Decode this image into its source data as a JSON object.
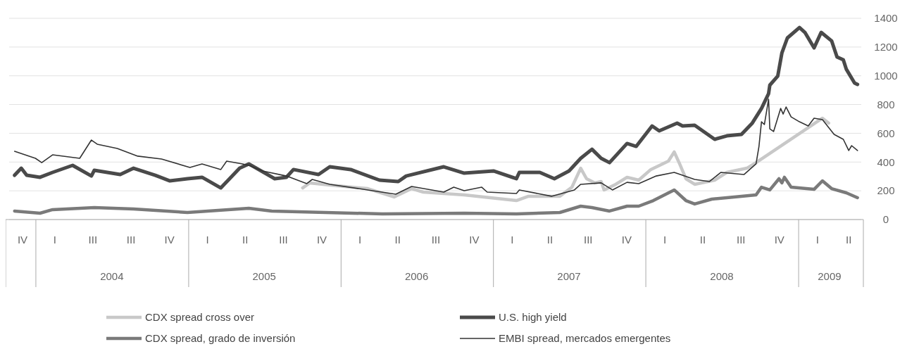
{
  "chart_data": {
    "type": "line",
    "xlim": [
      "2003-10-29",
      "2009-05-31"
    ],
    "ylim": [
      0,
      1400
    ],
    "yticks": [
      0,
      200,
      400,
      600,
      800,
      1000,
      1200,
      1400
    ],
    "xticks": [
      {
        "value": "2004-07-01",
        "label": "2004"
      },
      {
        "value": "2005-07-01",
        "label": "2005"
      },
      {
        "value": "2006-07-01",
        "label": "2006"
      },
      {
        "value": "2007-07-01",
        "label": "2007"
      },
      {
        "value": "2008-07-01",
        "label": "2008"
      },
      {
        "value": "2009-03-16",
        "label": "2009"
      }
    ],
    "annotations": [
      "IV",
      "I",
      "III",
      "III",
      "IV",
      "I",
      "II",
      "III",
      "IV",
      "I",
      "II",
      "III",
      "IV",
      "I",
      "II",
      "III",
      "IV",
      "I",
      "II",
      "III",
      "IV",
      "I",
      "II"
    ],
    "grid": "y",
    "legend": "bottom",
    "series": [
      {
        "name": "CDX spread cross over",
        "color": "#c8c8c8",
        "x": [
          "2005-10-01",
          "2005-10-18",
          "2005-12-05",
          "2006-03-06",
          "2006-05-08",
          "2006-06-19",
          "2006-07-17",
          "2006-10-23",
          "2007-02-25",
          "2007-03-26",
          "2007-06-09",
          "2007-07-08",
          "2007-07-29",
          "2007-08-12",
          "2007-09-01",
          "2007-09-16",
          "2007-09-23",
          "2007-10-21",
          "2007-11-17",
          "2007-12-15",
          "2008-01-13",
          "2008-02-24",
          "2008-03-09",
          "2008-03-22",
          "2008-04-06",
          "2008-04-27",
          "2008-06-14",
          "2008-07-13",
          "2008-08-30",
          "2008-09-21",
          "2009-02-27",
          "2009-03-14"
        ],
        "values": [
          220,
          255,
          240,
          215,
          157,
          215,
          191,
          171,
          132,
          162,
          162,
          225,
          357,
          284,
          255,
          264,
          206,
          245,
          294,
          274,
          348,
          406,
          470,
          387,
          284,
          245,
          274,
          328,
          357,
          396,
          705,
          671
        ]
      },
      {
        "name": "CDX spread, grado de inversión",
        "color": "#7a7a7a",
        "x": [
          "2003-11-11",
          "2004-01-11",
          "2004-02-10",
          "2004-05-20",
          "2004-08-22",
          "2004-12-29",
          "2005-05-25",
          "2005-07-19",
          "2006-04-10",
          "2006-10-23",
          "2007-02-25",
          "2007-06-09",
          "2007-07-29",
          "2007-08-25",
          "2007-10-06",
          "2007-11-17",
          "2007-12-15",
          "2008-01-19",
          "2008-03-09",
          "2008-04-06",
          "2008-04-27",
          "2008-06-07",
          "2008-07-13",
          "2008-09-21",
          "2008-10-04",
          "2008-10-24",
          "2008-11-15",
          "2008-11-22",
          "2008-11-28",
          "2008-12-14",
          "2009-02-07",
          "2009-02-27",
          "2009-03-21",
          "2009-04-25",
          "2009-05-22"
        ],
        "values": [
          59,
          44,
          69,
          83,
          73,
          49,
          78,
          59,
          39,
          44,
          39,
          49,
          93,
          83,
          59,
          93,
          93,
          132,
          206,
          132,
          108,
          142,
          152,
          171,
          225,
          206,
          284,
          255,
          294,
          225,
          210,
          269,
          215,
          186,
          152
        ]
      },
      {
        "name": "U.S. high yield",
        "color": "#4a4a4a",
        "x": [
          "2003-11-11",
          "2003-11-27",
          "2003-12-10",
          "2004-01-11",
          "2004-02-10",
          "2004-03-29",
          "2004-05-13",
          "2004-05-20",
          "2004-07-21",
          "2004-08-22",
          "2004-10-13",
          "2004-11-17",
          "2004-12-29",
          "2005-02-02",
          "2005-03-19",
          "2005-05-03",
          "2005-05-25",
          "2005-07-26",
          "2005-08-23",
          "2005-09-09",
          "2005-11-08",
          "2005-12-05",
          "2006-01-24",
          "2006-04-03",
          "2006-05-18",
          "2006-06-06",
          "2006-09-04",
          "2006-10-23",
          "2007-01-01",
          "2007-02-25",
          "2007-03-04",
          "2007-04-22",
          "2007-05-27",
          "2007-07-01",
          "2007-07-29",
          "2007-08-25",
          "2007-09-16",
          "2007-10-06",
          "2007-11-17",
          "2007-12-09",
          "2008-01-16",
          "2008-02-02",
          "2008-03-16",
          "2008-03-29",
          "2008-04-27",
          "2008-06-14",
          "2008-07-13",
          "2008-08-17",
          "2008-09-12",
          "2008-10-04",
          "2008-10-21",
          "2008-10-24",
          "2008-11-12",
          "2008-11-22",
          "2008-12-05",
          "2009-01-03",
          "2009-01-16",
          "2009-02-07",
          "2009-02-24",
          "2009-03-21",
          "2009-04-03",
          "2009-04-18",
          "2009-04-25",
          "2009-05-15",
          "2009-05-22"
        ],
        "values": [
          308,
          357,
          308,
          294,
          328,
          377,
          303,
          343,
          313,
          357,
          308,
          269,
          284,
          294,
          220,
          357,
          387,
          284,
          294,
          348,
          313,
          367,
          348,
          274,
          264,
          303,
          367,
          323,
          338,
          284,
          328,
          328,
          284,
          338,
          426,
          489,
          426,
          396,
          529,
          509,
          651,
          617,
          671,
          651,
          656,
          558,
          582,
          592,
          671,
          773,
          876,
          935,
          998,
          1160,
          1263,
          1336,
          1302,
          1194,
          1302,
          1243,
          1131,
          1111,
          1047,
          950,
          940
        ]
      },
      {
        "name": "EMBI spread, mercados emergentes",
        "color": "#333333",
        "x": [
          "2003-11-11",
          "2003-12-31",
          "2004-01-15",
          "2004-02-10",
          "2004-04-15",
          "2004-05-13",
          "2004-05-27",
          "2004-07-14",
          "2004-09-01",
          "2004-10-28",
          "2005-01-04",
          "2005-02-02",
          "2005-03-19",
          "2005-04-02",
          "2005-05-10",
          "2005-05-25",
          "2005-06-27",
          "2005-08-23",
          "2005-10-11",
          "2005-10-24",
          "2005-12-05",
          "2006-03-06",
          "2006-05-12",
          "2006-06-19",
          "2006-09-04",
          "2006-09-28",
          "2006-10-23",
          "2006-12-04",
          "2006-12-17",
          "2007-02-25",
          "2007-03-04",
          "2007-05-20",
          "2007-07-14",
          "2007-07-29",
          "2007-09-16",
          "2007-10-13",
          "2007-11-17",
          "2007-12-15",
          "2008-01-26",
          "2008-03-09",
          "2008-04-27",
          "2008-06-01",
          "2008-06-29",
          "2008-08-23",
          "2008-09-21",
          "2008-09-28",
          "2008-10-04",
          "2008-10-11",
          "2008-10-21",
          "2008-10-24",
          "2008-11-02",
          "2008-11-19",
          "2008-11-25",
          "2008-12-02",
          "2008-12-14",
          "2009-01-03",
          "2009-01-24",
          "2009-02-07",
          "2009-02-27",
          "2009-03-27",
          "2009-04-18",
          "2009-05-01",
          "2009-05-08",
          "2009-05-22"
        ],
        "values": [
          475,
          426,
          396,
          450,
          426,
          553,
          524,
          494,
          441,
          421,
          362,
          387,
          348,
          406,
          387,
          377,
          338,
          303,
          250,
          279,
          245,
          206,
          176,
          230,
          191,
          225,
          201,
          225,
          191,
          181,
          206,
          162,
          206,
          245,
          255,
          206,
          259,
          250,
          303,
          328,
          279,
          264,
          328,
          313,
          387,
          509,
          680,
          661,
          837,
          631,
          612,
          773,
          734,
          783,
          714,
          680,
          651,
          705,
          695,
          592,
          558,
          480,
          514,
          480
        ]
      }
    ]
  }
}
